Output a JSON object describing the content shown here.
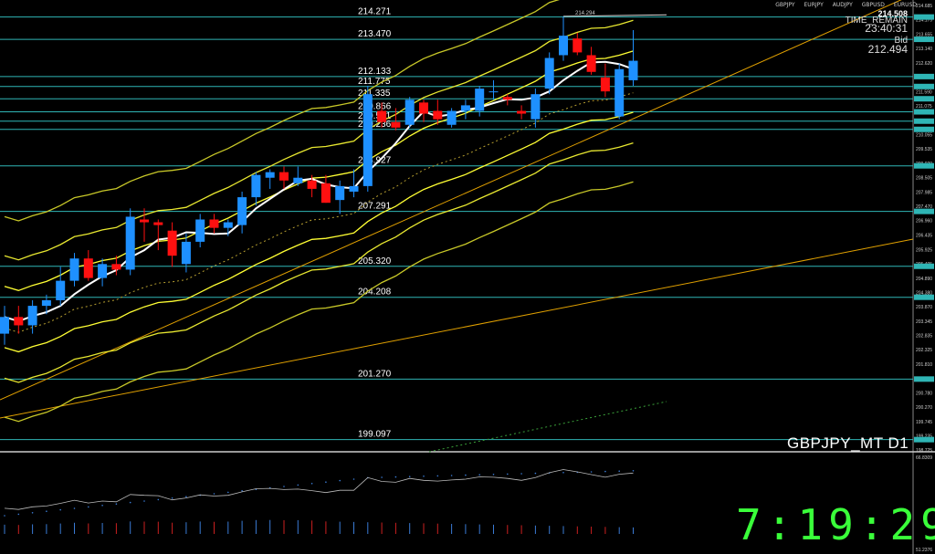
{
  "symbol_tabs": [
    "GBPJPY",
    "EURJPY",
    "AUDJPY",
    "GBPUSD",
    "EURUSD"
  ],
  "info": {
    "price_now": "214.508",
    "time_remain_label": "TIME_REMAIN",
    "time_remain": "23:40:31",
    "bid_label": "Bid",
    "bid": "212.494"
  },
  "chart_title": "GBPJPY_MT D1",
  "clock": "7:19:29",
  "peak_label": "214.294",
  "levels": [
    {
      "price": 214.271,
      "label": "214.271"
    },
    {
      "price": 213.47,
      "label": "213.470"
    },
    {
      "price": 212.133,
      "label": "212.133"
    },
    {
      "price": 211.775,
      "label": "211.775"
    },
    {
      "price": 211.335,
      "label": "211.335"
    },
    {
      "price": 210.866,
      "label": "210.866"
    },
    {
      "price": 210.531,
      "label": "210.531"
    },
    {
      "price": 210.236,
      "label": "210.236"
    },
    {
      "price": 208.927,
      "label": "208.927"
    },
    {
      "price": 207.291,
      "label": "207.291"
    },
    {
      "price": 205.32,
      "label": "205.320"
    },
    {
      "price": 204.208,
      "label": "204.208"
    },
    {
      "price": 201.27,
      "label": "201.270"
    },
    {
      "price": 199.097,
      "label": "199.097"
    }
  ],
  "axis_ticks": [
    "214.685",
    "214.175",
    "213.655",
    "213.140",
    "212.620",
    "212.105",
    "211.590",
    "211.075",
    "210.560",
    "210.055",
    "209.535",
    "209.020",
    "208.505",
    "207.985",
    "207.470",
    "206.960",
    "206.435",
    "205.925",
    "205.405",
    "204.890",
    "204.380",
    "203.870",
    "203.345",
    "202.835",
    "202.325",
    "201.810",
    "201.290",
    "200.780",
    "200.270",
    "199.745",
    "199.235",
    "198.725"
  ],
  "osc_ticks": [
    "66.8309",
    "51.2376"
  ],
  "chart_data": {
    "type": "candlestick",
    "ylim": [
      198.725,
      214.685
    ],
    "candles": [
      {
        "o": 202.9,
        "h": 203.9,
        "l": 202.5,
        "c": 203.5
      },
      {
        "o": 203.5,
        "h": 203.9,
        "l": 202.9,
        "c": 203.2
      },
      {
        "o": 203.2,
        "h": 204.1,
        "l": 202.9,
        "c": 203.9
      },
      {
        "o": 203.9,
        "h": 204.3,
        "l": 203.6,
        "c": 204.1
      },
      {
        "o": 204.1,
        "h": 205.3,
        "l": 203.9,
        "c": 204.8
      },
      {
        "o": 204.8,
        "h": 205.8,
        "l": 204.6,
        "c": 205.6
      },
      {
        "o": 205.6,
        "h": 205.9,
        "l": 204.8,
        "c": 204.9
      },
      {
        "o": 204.9,
        "h": 205.6,
        "l": 204.6,
        "c": 205.4
      },
      {
        "o": 205.4,
        "h": 205.7,
        "l": 205.0,
        "c": 205.2
      },
      {
        "o": 205.2,
        "h": 207.4,
        "l": 205.0,
        "c": 207.1
      },
      {
        "o": 207.0,
        "h": 207.4,
        "l": 206.2,
        "c": 206.9
      },
      {
        "o": 206.9,
        "h": 207.0,
        "l": 205.9,
        "c": 206.8
      },
      {
        "o": 206.6,
        "h": 206.9,
        "l": 205.3,
        "c": 205.7
      },
      {
        "o": 205.4,
        "h": 206.5,
        "l": 205.1,
        "c": 206.2
      },
      {
        "o": 206.2,
        "h": 207.2,
        "l": 206.0,
        "c": 207.0
      },
      {
        "o": 207.0,
        "h": 207.2,
        "l": 206.5,
        "c": 206.7
      },
      {
        "o": 206.7,
        "h": 207.0,
        "l": 206.4,
        "c": 206.9
      },
      {
        "o": 206.8,
        "h": 208.0,
        "l": 206.5,
        "c": 207.8
      },
      {
        "o": 207.8,
        "h": 208.7,
        "l": 207.5,
        "c": 208.6
      },
      {
        "o": 208.5,
        "h": 208.8,
        "l": 208.1,
        "c": 208.7
      },
      {
        "o": 208.7,
        "h": 208.9,
        "l": 208.1,
        "c": 208.4
      },
      {
        "o": 208.3,
        "h": 208.9,
        "l": 208.2,
        "c": 208.5
      },
      {
        "o": 208.4,
        "h": 208.6,
        "l": 207.8,
        "c": 208.1
      },
      {
        "o": 208.3,
        "h": 208.6,
        "l": 207.6,
        "c": 207.6
      },
      {
        "o": 207.7,
        "h": 208.4,
        "l": 207.2,
        "c": 208.2
      },
      {
        "o": 208.0,
        "h": 208.8,
        "l": 207.8,
        "c": 208.2
      },
      {
        "o": 208.2,
        "h": 211.8,
        "l": 208.0,
        "c": 211.5
      },
      {
        "o": 210.9,
        "h": 211.2,
        "l": 210.3,
        "c": 210.5
      },
      {
        "o": 210.5,
        "h": 211.0,
        "l": 210.2,
        "c": 210.3
      },
      {
        "o": 210.4,
        "h": 211.4,
        "l": 210.3,
        "c": 211.3
      },
      {
        "o": 211.2,
        "h": 211.3,
        "l": 210.5,
        "c": 210.8
      },
      {
        "o": 210.9,
        "h": 211.3,
        "l": 210.4,
        "c": 210.6
      },
      {
        "o": 210.4,
        "h": 211.0,
        "l": 210.3,
        "c": 210.9
      },
      {
        "o": 210.9,
        "h": 211.3,
        "l": 210.6,
        "c": 211.1
      },
      {
        "o": 210.9,
        "h": 211.8,
        "l": 210.7,
        "c": 211.7
      },
      {
        "o": 211.6,
        "h": 212.0,
        "l": 211.3,
        "c": 211.6
      },
      {
        "o": 211.4,
        "h": 211.5,
        "l": 211.1,
        "c": 211.3
      },
      {
        "o": 210.9,
        "h": 211.1,
        "l": 210.6,
        "c": 210.8
      },
      {
        "o": 210.6,
        "h": 211.7,
        "l": 210.3,
        "c": 211.5
      },
      {
        "o": 211.7,
        "h": 213.0,
        "l": 211.5,
        "c": 212.8
      },
      {
        "o": 212.9,
        "h": 214.3,
        "l": 212.7,
        "c": 213.6
      },
      {
        "o": 213.5,
        "h": 213.7,
        "l": 212.9,
        "c": 213.0
      },
      {
        "o": 212.9,
        "h": 213.2,
        "l": 212.2,
        "c": 212.3
      },
      {
        "o": 212.1,
        "h": 212.6,
        "l": 211.4,
        "c": 211.6
      },
      {
        "o": 210.7,
        "h": 212.6,
        "l": 210.6,
        "c": 212.4
      },
      {
        "o": 212.0,
        "h": 213.8,
        "l": 211.8,
        "c": 212.7
      }
    ]
  },
  "colors": {
    "bull": "#1e90ff",
    "bear": "#ff1010",
    "band": "#e8e830",
    "band_bright": "#ffff33",
    "ma": "#ffffff",
    "level": "#2fb5b5",
    "trend": "#e0a000",
    "clock": "#3aff3a"
  }
}
